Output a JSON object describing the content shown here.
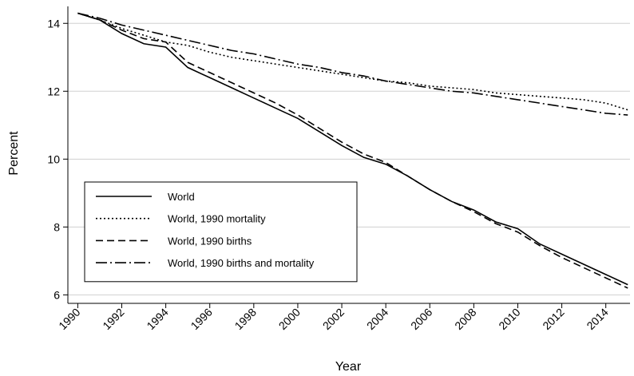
{
  "chart_data": {
    "type": "line",
    "x": [
      1990,
      1991,
      1992,
      1993,
      1994,
      1995,
      1996,
      1997,
      1998,
      1999,
      2000,
      2001,
      2002,
      2003,
      2004,
      2005,
      2006,
      2007,
      2008,
      2009,
      2010,
      2011,
      2012,
      2013,
      2014,
      2015
    ],
    "series": [
      {
        "name": "World",
        "color": "#000000",
        "dash": "solid",
        "values": [
          14.3,
          14.1,
          13.7,
          13.4,
          13.3,
          12.7,
          12.4,
          12.1,
          11.8,
          11.5,
          11.2,
          10.8,
          10.4,
          10.05,
          9.85,
          9.5,
          9.1,
          8.75,
          8.5,
          8.15,
          7.95,
          7.5,
          7.2,
          6.9,
          6.6,
          6.3
        ]
      },
      {
        "name": "World, 1990 mortality",
        "color": "#000000",
        "dash": "dotted",
        "values": [
          14.3,
          14.1,
          13.85,
          13.65,
          13.45,
          13.35,
          13.15,
          13.0,
          12.9,
          12.8,
          12.7,
          12.6,
          12.5,
          12.4,
          12.3,
          12.25,
          12.15,
          12.1,
          12.05,
          11.95,
          11.9,
          11.85,
          11.8,
          11.75,
          11.65,
          11.45
        ]
      },
      {
        "name": "World, 1990 births",
        "color": "#000000",
        "dash": "dashed",
        "values": [
          14.3,
          14.1,
          13.8,
          13.55,
          13.45,
          12.85,
          12.55,
          12.25,
          11.95,
          11.65,
          11.3,
          10.9,
          10.5,
          10.15,
          9.9,
          9.5,
          9.1,
          8.75,
          8.45,
          8.1,
          7.85,
          7.45,
          7.1,
          6.8,
          6.5,
          6.2
        ]
      },
      {
        "name": "World, 1990 births and mortality",
        "color": "#000000",
        "dash": "dashdot",
        "values": [
          14.3,
          14.15,
          13.95,
          13.8,
          13.65,
          13.5,
          13.35,
          13.2,
          13.1,
          12.95,
          12.8,
          12.7,
          12.55,
          12.45,
          12.3,
          12.2,
          12.1,
          12.0,
          11.95,
          11.85,
          11.75,
          11.65,
          11.55,
          11.45,
          11.35,
          11.3
        ]
      }
    ],
    "xlabel": "Year",
    "ylabel": "Percent",
    "xlim": [
      1989.55,
      2015.1
    ],
    "ylim": [
      5.75,
      14.5
    ],
    "xticks": [
      1990,
      1992,
      1994,
      1996,
      1998,
      2000,
      2002,
      2004,
      2006,
      2008,
      2010,
      2012,
      2014
    ],
    "yticks": [
      6,
      8,
      10,
      12,
      14
    ],
    "grid": true,
    "legend": "lower left"
  }
}
